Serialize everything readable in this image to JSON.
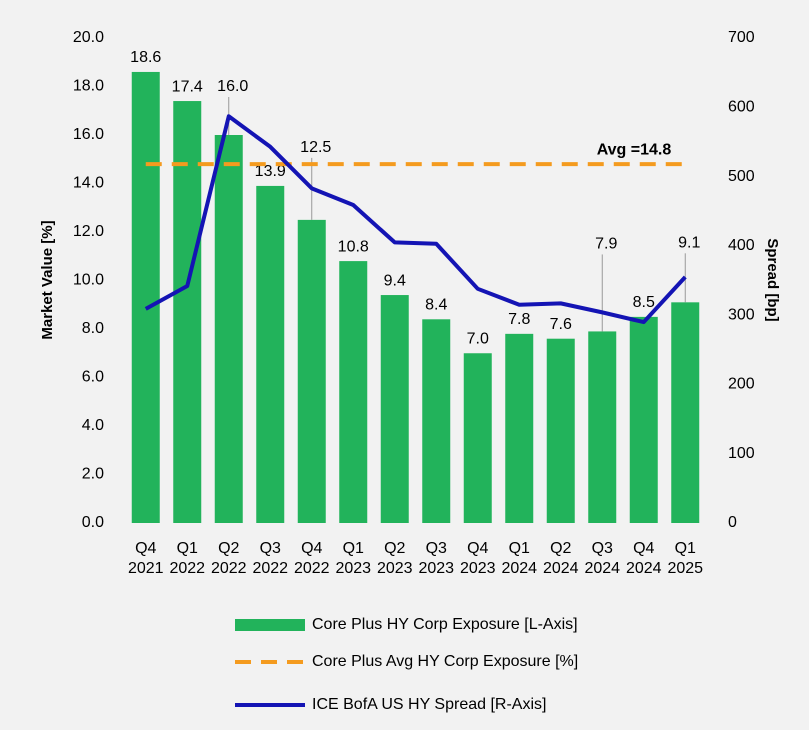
{
  "chart_data": {
    "type": "bar",
    "categories": [
      "Q4 2021",
      "Q1 2022",
      "Q2 2022",
      "Q3 2022",
      "Q4 2022",
      "Q1 2023",
      "Q2 2023",
      "Q3 2023",
      "Q4 2023",
      "Q1 2024",
      "Q2 2024",
      "Q3 2024",
      "Q4 2024",
      "Q1 2025"
    ],
    "series": [
      {
        "name": "Core Plus HY Corp Exposure [L-Axis]",
        "color": "#22b35b",
        "type": "bar",
        "values": [
          18.6,
          17.4,
          16.0,
          13.9,
          12.5,
          10.8,
          9.4,
          8.4,
          7.0,
          7.8,
          7.6,
          7.9,
          8.5,
          9.1
        ],
        "value_labels": [
          "18.6",
          "17.4",
          "16.0",
          "13.9",
          "12.5",
          "10.8",
          "9.4",
          "8.4",
          "7.0",
          "7.8",
          "7.6",
          "7.9",
          "8.5",
          "9.1"
        ]
      },
      {
        "name": "Core Plus Avg HY Corp Exposure [%]",
        "color": "#f49b1f",
        "type": "dashed",
        "values": [
          14.8,
          14.8,
          14.8,
          14.8,
          14.8,
          14.8,
          14.8,
          14.8,
          14.8,
          14.8,
          14.8,
          14.8,
          14.8,
          14.8
        ]
      },
      {
        "name": "ICE BofA US HY Spread [R-Axis]",
        "color": "#1414b4",
        "type": "line",
        "axis": "y2",
        "values": [
          309,
          342,
          587,
          543,
          483,
          459,
          405,
          403,
          338,
          315,
          317,
          304,
          290,
          355
        ]
      }
    ],
    "annotation": "Avg =14.8",
    "ylabel": "Market Value [%]",
    "y2label": "Spread [bp]",
    "ylim": [
      0,
      20
    ],
    "yticks": [
      {
        "value": 0,
        "label": "0.0"
      },
      {
        "value": 2,
        "label": "2.0"
      },
      {
        "value": 4,
        "label": "4.0"
      },
      {
        "value": 6,
        "label": "6.0"
      },
      {
        "value": 8,
        "label": "8.0"
      },
      {
        "value": 10,
        "label": "10.0"
      },
      {
        "value": 12,
        "label": "12.0"
      },
      {
        "value": 14,
        "label": "14.0"
      },
      {
        "value": 16,
        "label": "16.0"
      },
      {
        "value": 18,
        "label": "18.0"
      },
      {
        "value": 20,
        "label": "20.0"
      }
    ],
    "y2lim": [
      0,
      700
    ],
    "y2ticks": [
      0,
      100,
      200,
      300,
      400,
      500,
      600,
      700
    ],
    "legend": "bottom"
  }
}
